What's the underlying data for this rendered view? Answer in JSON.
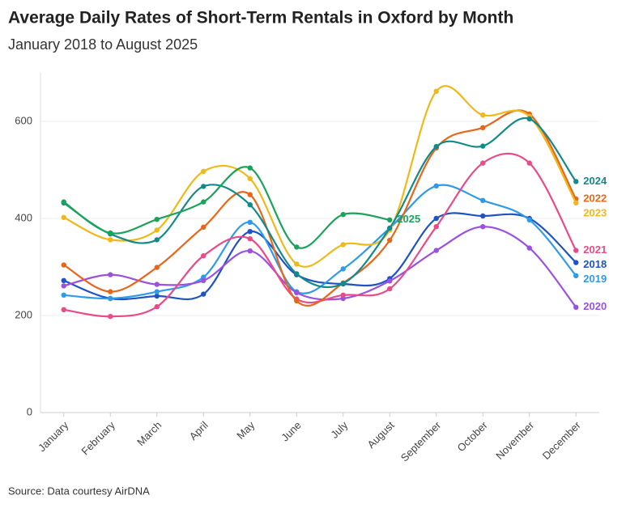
{
  "chart_data": {
    "type": "line",
    "title": "Average Daily Rates of Short-Term Rentals in Oxford by Month",
    "subtitle": "January 2018 to August 2025",
    "source": "Source: Data courtesy AirDNA",
    "categories": [
      "January",
      "February",
      "March",
      "April",
      "May",
      "June",
      "July",
      "August",
      "September",
      "October",
      "November",
      "December"
    ],
    "ylim": [
      0,
      700
    ],
    "yticks": [
      0,
      200,
      400,
      600
    ],
    "grid": true,
    "series": [
      {
        "name": "2018",
        "color": "#1f52c4",
        "values": [
          272,
          235,
          240,
          244,
          373,
          284,
          265,
          276,
          400,
          405,
          400,
          309
        ]
      },
      {
        "name": "2019",
        "color": "#2e9be8",
        "values": [
          242,
          235,
          249,
          279,
          392,
          249,
          296,
          380,
          467,
          437,
          397,
          282
        ]
      },
      {
        "name": "2020",
        "color": "#9b51e0",
        "values": [
          261,
          284,
          264,
          272,
          333,
          247,
          235,
          271,
          334,
          383,
          339,
          217
        ]
      },
      {
        "name": "2021",
        "color": "#e84a8a",
        "values": [
          212,
          198,
          218,
          323,
          358,
          234,
          242,
          255,
          383,
          514,
          514,
          334
        ]
      },
      {
        "name": "2022",
        "color": "#e8661a",
        "values": [
          304,
          249,
          299,
          382,
          449,
          230,
          267,
          355,
          545,
          587,
          615,
          440
        ]
      },
      {
        "name": "2023",
        "color": "#f0b91a",
        "values": [
          402,
          356,
          376,
          497,
          482,
          306,
          346,
          376,
          662,
          613,
          610,
          432
        ]
      },
      {
        "name": "2024",
        "color": "#138a8a",
        "values": [
          432,
          368,
          356,
          466,
          428,
          286,
          266,
          380,
          548,
          549,
          605,
          476
        ]
      },
      {
        "name": "2025",
        "color": "#1aa35a",
        "values": [
          434,
          370,
          398,
          434,
          504,
          341,
          408,
          397,
          null,
          null,
          null,
          null
        ]
      }
    ]
  }
}
